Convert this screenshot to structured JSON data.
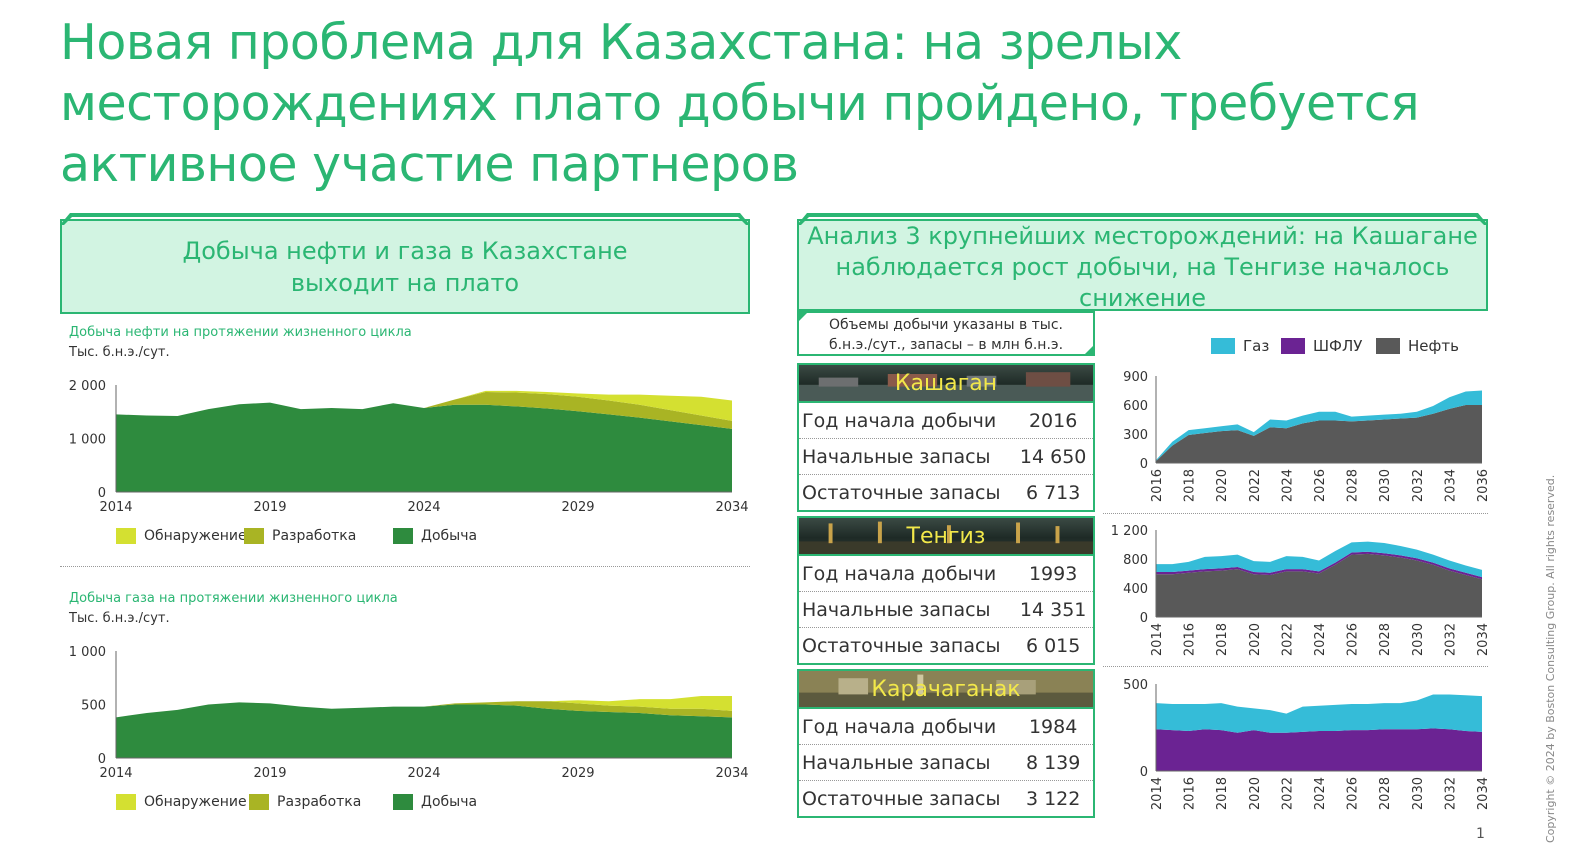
{
  "title": "Новая проблема для Казахстана: на зрелых месторождениях плато добычи пройдено, требуется активное участие партнеров",
  "left_header": {
    "line1": "Добыча нефти и газа в Казахстане",
    "line2": "выходит на плато"
  },
  "right_header": {
    "line1": "Анализ 3 крупнейших месторождений: на Кашагане",
    "line2": "наблюдается рост добычи, на Тенгизе началось",
    "line3": "снижение"
  },
  "note": {
    "line1": "Объемы добычи указаны в тыс.",
    "line2": "б.н.э./сут., запасы – в млн б.н.э."
  },
  "right_legend": [
    "Газ",
    "ШФЛУ",
    "Нефть"
  ],
  "colors": {
    "accent": "#2bb673",
    "header_bg": "#d2f4e2",
    "discovery": "#d4e031",
    "development": "#a9b424",
    "production": "#2e8b3e",
    "gas": "#35bcd8",
    "ngl": "#6b2393",
    "oil": "#595959",
    "field_label": "#f2e84a"
  },
  "oil_chart": {
    "subtitle": "Добыча нефти на протяжении жизненного цикла",
    "unit": "Тыс. б.н.э./сут.",
    "legend": [
      "Обнаружение",
      "Разработка",
      "Добыча"
    ]
  },
  "gas_chart": {
    "subtitle": "Добыча газа на протяжении жизненного цикла",
    "unit": "Тыс. б.н.э./сут.",
    "legend": [
      "Обнаружение",
      "Разработка",
      "Добыча"
    ]
  },
  "fields": [
    {
      "name": "Кашаган",
      "rows": [
        {
          "label": "Год начала добычи",
          "value": "2016"
        },
        {
          "label": "Начальные запасы",
          "value": "14 650"
        },
        {
          "label": "Остаточные запасы",
          "value": "6 713"
        }
      ]
    },
    {
      "name": "Тенгиз",
      "rows": [
        {
          "label": "Год начала добычи",
          "value": "1993"
        },
        {
          "label": "Начальные запасы",
          "value": "14 351"
        },
        {
          "label": "Остаточные запасы",
          "value": "6 015"
        }
      ]
    },
    {
      "name": "Карачаганак",
      "rows": [
        {
          "label": "Год начала добычи",
          "value": "1984"
        },
        {
          "label": "Начальные запасы",
          "value": "8 139"
        },
        {
          "label": "Остаточные запасы",
          "value": "3 122"
        }
      ]
    }
  ],
  "copyright": "Copyright © 2024 by Boston Consulting Group. All rights reserved.",
  "page_number": "1",
  "chart_data": [
    {
      "id": "kz-oil",
      "type": "area",
      "stacked": true,
      "x": [
        2014,
        2015,
        2016,
        2017,
        2018,
        2019,
        2020,
        2021,
        2022,
        2023,
        2024,
        2025,
        2026,
        2027,
        2028,
        2029,
        2030,
        2031,
        2032,
        2033,
        2034
      ],
      "xticks": [
        2014,
        2019,
        2024,
        2029,
        2034
      ],
      "xtick_labels": [
        "2014",
        "2019",
        "2024",
        "2029",
        "2034"
      ],
      "ylim": [
        0,
        2000
      ],
      "yticks": [
        0,
        1000,
        2000
      ],
      "ytick_labels": [
        "0",
        "1 000",
        "2 000"
      ],
      "series": [
        {
          "name": "Добыча",
          "values": [
            1450,
            1430,
            1420,
            1550,
            1640,
            1670,
            1550,
            1570,
            1550,
            1660,
            1570,
            1630,
            1630,
            1600,
            1560,
            1510,
            1450,
            1390,
            1320,
            1250,
            1180
          ]
        },
        {
          "name": "Разработка",
          "values": [
            0,
            0,
            0,
            0,
            0,
            0,
            0,
            0,
            0,
            0,
            0,
            100,
            240,
            260,
            270,
            270,
            260,
            240,
            210,
            180,
            150
          ]
        },
        {
          "name": "Обнаружение",
          "values": [
            0,
            0,
            0,
            0,
            0,
            0,
            0,
            0,
            0,
            0,
            0,
            0,
            20,
            30,
            40,
            60,
            110,
            190,
            270,
            350,
            380
          ]
        }
      ]
    },
    {
      "id": "kz-gas",
      "type": "area",
      "stacked": true,
      "x": [
        2014,
        2015,
        2016,
        2017,
        2018,
        2019,
        2020,
        2021,
        2022,
        2023,
        2024,
        2025,
        2026,
        2027,
        2028,
        2029,
        2030,
        2031,
        2032,
        2033,
        2034
      ],
      "xticks": [
        2014,
        2019,
        2024,
        2029,
        2034
      ],
      "xtick_labels": [
        "2014",
        "2019",
        "2024",
        "2029",
        "2034"
      ],
      "ylim": [
        0,
        1000
      ],
      "yticks": [
        0,
        500,
        1000
      ],
      "ytick_labels": [
        "0",
        "500",
        "1 000"
      ],
      "series": [
        {
          "name": "Добыча",
          "values": [
            380,
            420,
            450,
            500,
            520,
            510,
            480,
            460,
            470,
            480,
            480,
            500,
            500,
            490,
            460,
            440,
            430,
            420,
            400,
            390,
            380
          ]
        },
        {
          "name": "Разработка",
          "values": [
            0,
            0,
            0,
            0,
            0,
            0,
            0,
            0,
            0,
            0,
            0,
            10,
            20,
            40,
            70,
            70,
            60,
            60,
            60,
            70,
            60
          ]
        },
        {
          "name": "Обнаружение",
          "values": [
            0,
            0,
            0,
            0,
            0,
            0,
            0,
            0,
            0,
            0,
            0,
            0,
            0,
            0,
            0,
            30,
            40,
            70,
            90,
            120,
            140
          ]
        }
      ]
    },
    {
      "id": "kashagan",
      "type": "area",
      "stacked": true,
      "x": [
        2016,
        2017,
        2018,
        2019,
        2020,
        2021,
        2022,
        2023,
        2024,
        2025,
        2026,
        2027,
        2028,
        2029,
        2030,
        2031,
        2032,
        2033,
        2034,
        2035,
        2036
      ],
      "xticks": [
        2016,
        2018,
        2020,
        2022,
        2024,
        2026,
        2028,
        2030,
        2032,
        2034,
        2036
      ],
      "xtick_labels": [
        "2016",
        "2018",
        "2020",
        "2022",
        "2024",
        "2026",
        "2028",
        "2030",
        "2032",
        "2034",
        "2036"
      ],
      "ylim": [
        0,
        900
      ],
      "yticks": [
        0,
        300,
        600,
        900
      ],
      "ytick_labels": [
        "0",
        "300",
        "600",
        "900"
      ],
      "series": [
        {
          "name": "Нефть",
          "values": [
            20,
            180,
            290,
            310,
            330,
            340,
            280,
            370,
            360,
            410,
            440,
            440,
            430,
            440,
            450,
            460,
            470,
            510,
            560,
            600,
            600
          ]
        },
        {
          "name": "ШФЛУ",
          "values": [
            0,
            0,
            0,
            0,
            0,
            0,
            0,
            0,
            0,
            0,
            0,
            0,
            0,
            0,
            0,
            0,
            0,
            0,
            0,
            0,
            0
          ]
        },
        {
          "name": "Газ",
          "values": [
            10,
            40,
            50,
            50,
            50,
            60,
            40,
            80,
            80,
            80,
            90,
            90,
            50,
            50,
            50,
            50,
            60,
            80,
            120,
            140,
            150
          ]
        }
      ]
    },
    {
      "id": "tengiz",
      "type": "area",
      "stacked": true,
      "x": [
        2014,
        2015,
        2016,
        2017,
        2018,
        2019,
        2020,
        2021,
        2022,
        2023,
        2024,
        2025,
        2026,
        2027,
        2028,
        2029,
        2030,
        2031,
        2032,
        2033,
        2034
      ],
      "xticks": [
        2014,
        2016,
        2018,
        2020,
        2022,
        2024,
        2026,
        2028,
        2030,
        2032,
        2034
      ],
      "xtick_labels": [
        "2014",
        "2016",
        "2018",
        "2020",
        "2022",
        "2024",
        "2026",
        "2028",
        "2030",
        "2032",
        "2034"
      ],
      "ylim": [
        0,
        1200
      ],
      "yticks": [
        0,
        400,
        800,
        1200
      ],
      "ytick_labels": [
        "0",
        "400",
        "800",
        "1 200"
      ],
      "series": [
        {
          "name": "Нефть",
          "values": [
            590,
            590,
            610,
            630,
            640,
            660,
            590,
            580,
            630,
            630,
            600,
            720,
            860,
            870,
            850,
            820,
            780,
            720,
            640,
            580,
            520
          ]
        },
        {
          "name": "ШФЛУ",
          "values": [
            30,
            30,
            30,
            30,
            30,
            30,
            30,
            30,
            30,
            30,
            30,
            30,
            30,
            30,
            30,
            30,
            30,
            30,
            30,
            30,
            30
          ]
        },
        {
          "name": "Газ",
          "values": [
            110,
            110,
            120,
            170,
            170,
            170,
            150,
            150,
            180,
            170,
            150,
            160,
            140,
            140,
            140,
            130,
            120,
            110,
            110,
            100,
            100
          ]
        }
      ]
    },
    {
      "id": "karachaganak",
      "type": "area",
      "stacked": true,
      "x": [
        2014,
        2015,
        2016,
        2017,
        2018,
        2019,
        2020,
        2021,
        2022,
        2023,
        2024,
        2025,
        2026,
        2027,
        2028,
        2029,
        2030,
        2031,
        2032,
        2033,
        2034
      ],
      "xticks": [
        2014,
        2016,
        2018,
        2020,
        2022,
        2024,
        2026,
        2028,
        2030,
        2032,
        2034
      ],
      "xtick_labels": [
        "2014",
        "2016",
        "2018",
        "2020",
        "2022",
        "2024",
        "2026",
        "2028",
        "2030",
        "2032",
        "2034"
      ],
      "ylim": [
        0,
        500
      ],
      "yticks": [
        0,
        500
      ],
      "ytick_labels": [
        "0",
        "500"
      ],
      "series": [
        {
          "name": "Нефть",
          "values": [
            0,
            0,
            0,
            0,
            0,
            0,
            0,
            0,
            0,
            0,
            0,
            0,
            0,
            0,
            0,
            0,
            0,
            0,
            0,
            0,
            0
          ]
        },
        {
          "name": "ШФЛУ",
          "values": [
            240,
            235,
            230,
            240,
            235,
            220,
            235,
            220,
            220,
            225,
            230,
            230,
            235,
            235,
            240,
            240,
            240,
            245,
            240,
            230,
            225
          ]
        },
        {
          "name": "Газ",
          "values": [
            150,
            150,
            155,
            145,
            155,
            150,
            125,
            130,
            110,
            145,
            145,
            150,
            150,
            150,
            150,
            150,
            165,
            195,
            200,
            205,
            205
          ]
        }
      ]
    }
  ]
}
